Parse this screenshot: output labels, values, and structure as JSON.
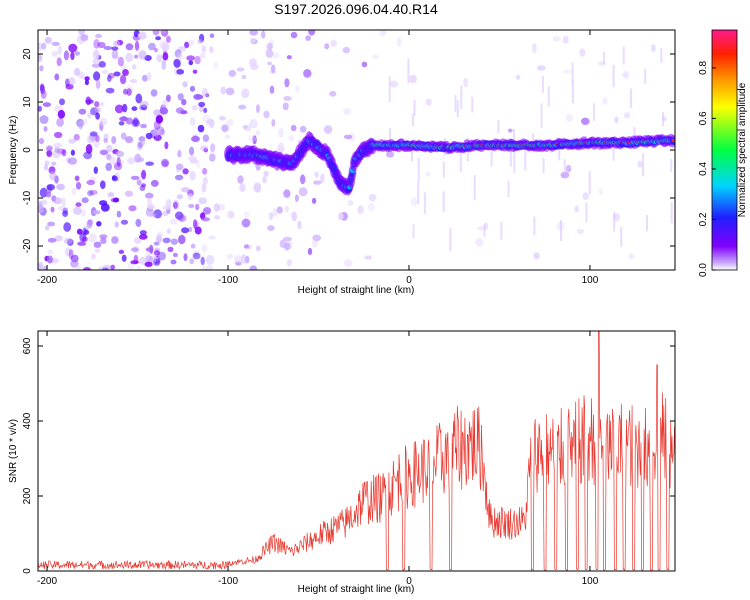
{
  "figure": {
    "title": "S197.2026.096.04.40.R14"
  },
  "chart_data": [
    {
      "type": "heatmap",
      "name": "spectrogram",
      "xlabel": "Height of straight line (km)",
      "ylabel": "Frequency (Hz)",
      "xlim": [
        -205,
        147
      ],
      "ylim": [
        -25,
        25
      ],
      "xticks": [
        -200,
        -100,
        0,
        100
      ],
      "yticks": [
        -20,
        -10,
        0,
        10,
        20
      ],
      "ridge": [
        {
          "x": -200,
          "f": null
        },
        {
          "x": -100,
          "f": -1
        },
        {
          "x": -85,
          "f": -1
        },
        {
          "x": -75,
          "f": -2
        },
        {
          "x": -65,
          "f": -3
        },
        {
          "x": -55,
          "f": 2
        },
        {
          "x": -45,
          "f": -1
        },
        {
          "x": -38,
          "f": -7
        },
        {
          "x": -33,
          "f": -8
        },
        {
          "x": -30,
          "f": -2
        },
        {
          "x": -25,
          "f": 0
        },
        {
          "x": -20,
          "f": 1
        },
        {
          "x": 0,
          "f": 1
        },
        {
          "x": 20,
          "f": 0.5
        },
        {
          "x": 40,
          "f": 1
        },
        {
          "x": 60,
          "f": 1
        },
        {
          "x": 80,
          "f": 1
        },
        {
          "x": 100,
          "f": 1.5
        },
        {
          "x": 120,
          "f": 1.5
        },
        {
          "x": 147,
          "f": 2
        }
      ],
      "colorbar": {
        "label": "Normalized spectral amplitude",
        "range": [
          0.0,
          0.95
        ],
        "ticks": [
          "0.0",
          "0.2",
          "0.4",
          "0.6",
          "0.8"
        ]
      }
    },
    {
      "type": "line",
      "name": "snr",
      "xlabel": "Height of straight line (km)",
      "ylabel": "SNR (10 * v/v)",
      "xlim": [
        -205,
        147
      ],
      "ylim": [
        0,
        640
      ],
      "xticks": [
        -200,
        -100,
        0,
        100
      ],
      "yticks": [
        0,
        200,
        400,
        600
      ],
      "color": "#e8382f",
      "envelope": [
        {
          "x": -205,
          "y": 20
        },
        {
          "x": -100,
          "y": 25
        },
        {
          "x": -85,
          "y": 35
        },
        {
          "x": -75,
          "y": 90
        },
        {
          "x": -65,
          "y": 60
        },
        {
          "x": -50,
          "y": 110
        },
        {
          "x": -35,
          "y": 150
        },
        {
          "x": -25,
          "y": 220
        },
        {
          "x": -15,
          "y": 230
        },
        {
          "x": -5,
          "y": 290
        },
        {
          "x": 5,
          "y": 310
        },
        {
          "x": 15,
          "y": 340
        },
        {
          "x": 25,
          "y": 380
        },
        {
          "x": 35,
          "y": 400
        },
        {
          "x": 40,
          "y": 380
        },
        {
          "x": 45,
          "y": 160
        },
        {
          "x": 55,
          "y": 150
        },
        {
          "x": 64,
          "y": 155
        },
        {
          "x": 68,
          "y": 380
        },
        {
          "x": 80,
          "y": 370
        },
        {
          "x": 90,
          "y": 390
        },
        {
          "x": 100,
          "y": 420
        },
        {
          "x": 110,
          "y": 390
        },
        {
          "x": 120,
          "y": 400
        },
        {
          "x": 130,
          "y": 380
        },
        {
          "x": 140,
          "y": 420
        },
        {
          "x": 147,
          "y": 360
        }
      ],
      "dropouts_x": [
        -12,
        -3,
        12,
        23,
        68,
        75,
        81,
        87,
        93,
        98,
        104,
        108,
        114,
        119,
        124,
        129,
        134,
        138,
        143
      ],
      "peaks": [
        {
          "x": 105,
          "y": 640
        },
        {
          "x": 137,
          "y": 550
        }
      ]
    }
  ]
}
